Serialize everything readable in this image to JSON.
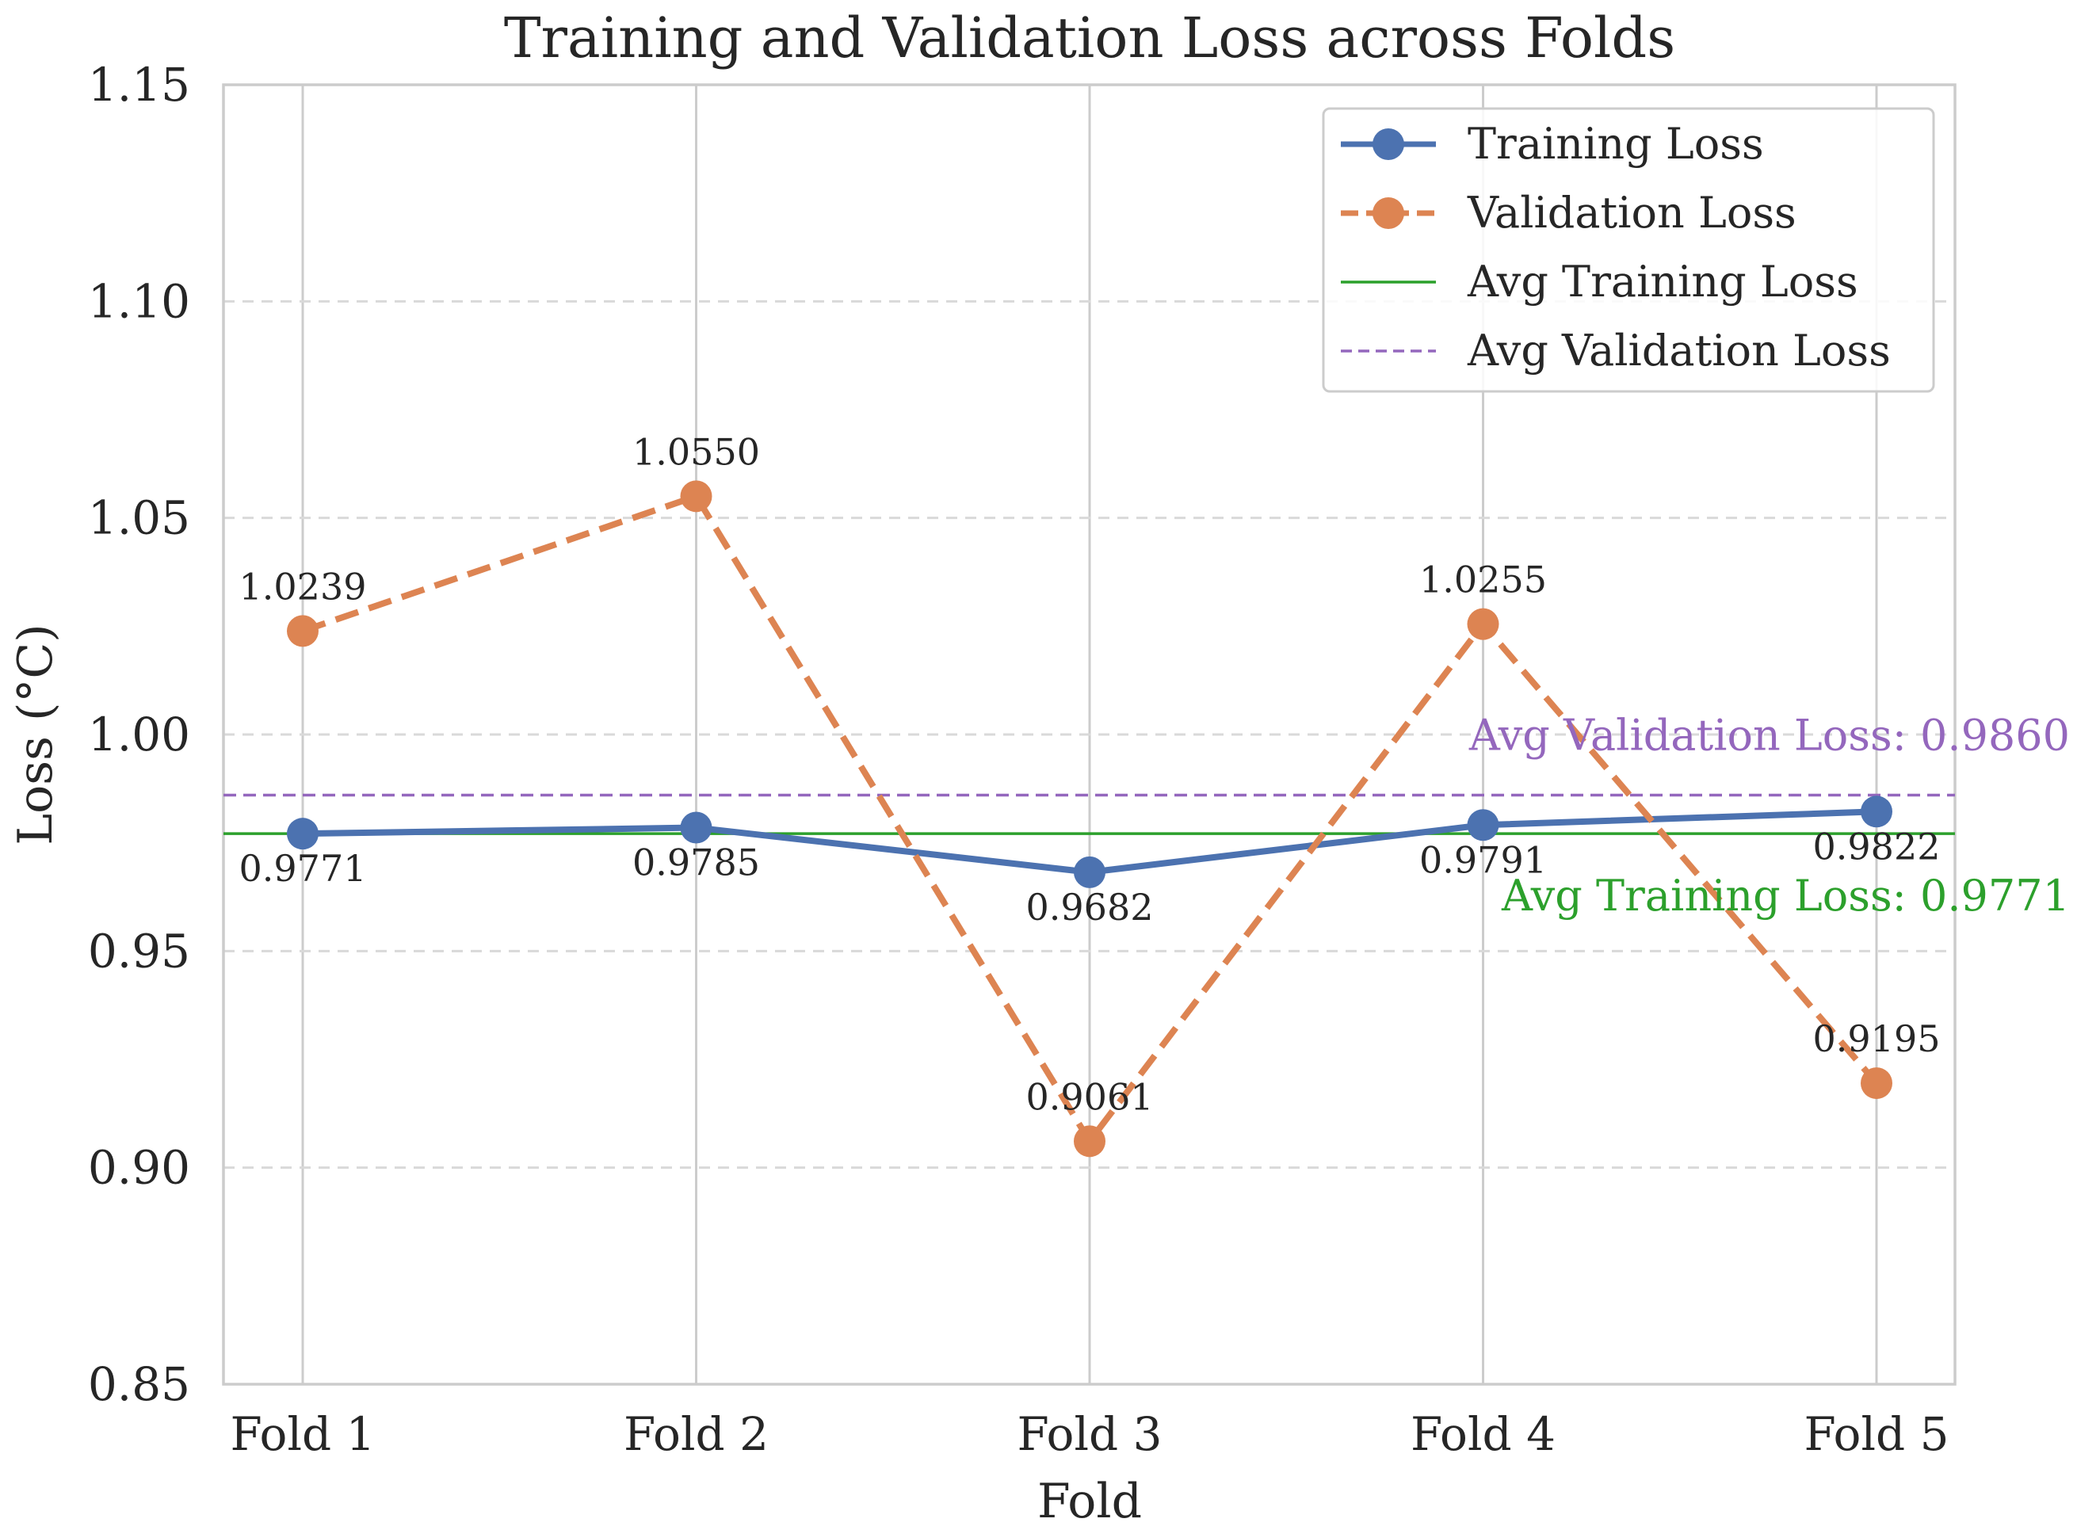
{
  "chart_data": {
    "type": "line",
    "title": "Training and Validation Loss across Folds",
    "xlabel": "Fold",
    "ylabel": "Loss (°C)",
    "categories": [
      "Fold 1",
      "Fold 2",
      "Fold 3",
      "Fold 4",
      "Fold 5"
    ],
    "ylim": [
      0.85,
      1.15
    ],
    "yticks": [
      0.85,
      0.9,
      0.95,
      1.0,
      1.05,
      1.1,
      1.15
    ],
    "ytick_labels": [
      "0.85",
      "0.90",
      "0.95",
      "1.00",
      "1.05",
      "1.10",
      "1.15"
    ],
    "grid": true,
    "legend_position": "top-right",
    "series": [
      {
        "name": "Training Loss",
        "values": [
          0.9771,
          0.9785,
          0.9682,
          0.9791,
          0.9822
        ],
        "labels": [
          "0.9771",
          "0.9785",
          "0.9682",
          "0.9791",
          "0.9822"
        ],
        "color": "#4c72b0",
        "style": "solid",
        "marker": "circle"
      },
      {
        "name": "Validation Loss",
        "values": [
          1.0239,
          1.055,
          0.9061,
          1.0255,
          0.9195
        ],
        "labels": [
          "1.0239",
          "1.0550",
          "0.9061",
          "1.0255",
          "0.9195"
        ],
        "color": "#dd8452",
        "style": "dashed",
        "marker": "circle"
      }
    ],
    "reference_lines": [
      {
        "name": "Avg Training Loss",
        "value": 0.9771,
        "annotation": "Avg Training Loss: 0.9771",
        "color": "#2ca02c",
        "style": "solid"
      },
      {
        "name": "Avg Validation Loss",
        "value": 0.986,
        "annotation": "Avg Validation Loss: 0.9860",
        "color": "#9467bd",
        "style": "dashed"
      }
    ]
  }
}
